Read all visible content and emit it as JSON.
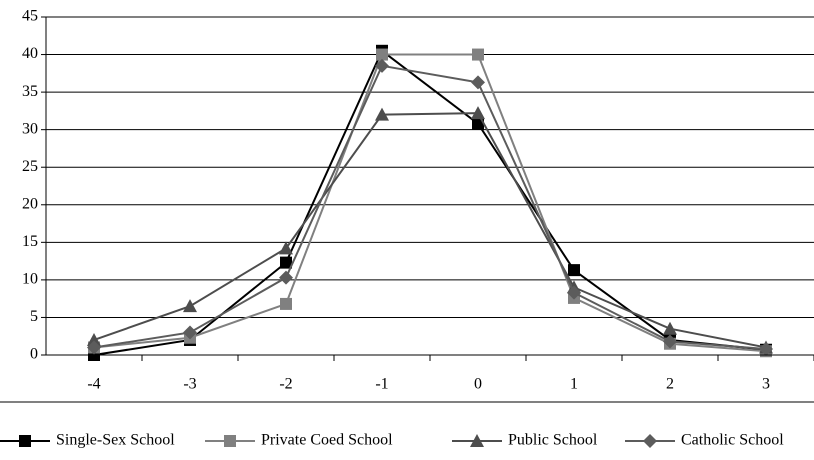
{
  "chart_data": {
    "type": "line",
    "categories": [
      "-4",
      "-3",
      "-2",
      "-1",
      "0",
      "1",
      "2",
      "3"
    ],
    "series": [
      {
        "name": "Single-Sex School",
        "color": "#000000",
        "marker": "square",
        "values": [
          0,
          2,
          12.3,
          40.5,
          30.8,
          11.3,
          2,
          0.7
        ]
      },
      {
        "name": "Private Coed School",
        "color": "#808080",
        "marker": "square",
        "values": [
          1,
          2.3,
          6.8,
          40,
          40,
          7.6,
          1.5,
          0.5
        ]
      },
      {
        "name": "Public School",
        "color": "#4d4d4d",
        "marker": "triangle",
        "values": [
          2,
          6.5,
          14.2,
          32,
          32.2,
          9,
          3.5,
          1
        ]
      },
      {
        "name": "Catholic School",
        "color": "#5c5c5c",
        "marker": "diamond",
        "values": [
          1,
          3,
          10.3,
          38.5,
          36.3,
          8.3,
          1.8,
          0.8
        ]
      }
    ],
    "ylim": [
      0,
      45
    ],
    "yticks": [
      0,
      5,
      10,
      15,
      20,
      25,
      30,
      35,
      40,
      45
    ],
    "grid": true,
    "legend": "bottom"
  }
}
